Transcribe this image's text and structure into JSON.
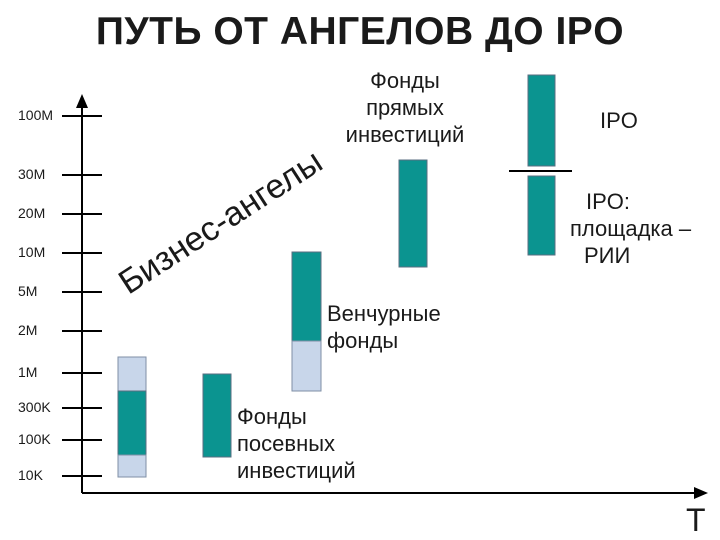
{
  "title": "ПУТЬ ОТ АНГЕЛОВ  ДО IPO",
  "axis": {
    "x_label": "T",
    "ticks": [
      "100M",
      "30M",
      "20M",
      "10M",
      "5M",
      "2M",
      "1M",
      "300K",
      "100K",
      "10K"
    ]
  },
  "stages": {
    "angels": "Бизнес-ангелы",
    "seed": [
      "Фонды",
      "посевных",
      "инвестиций"
    ],
    "venture": [
      "Венчурные",
      "фонды"
    ],
    "private_equity": [
      "Фонды",
      "прямых",
      "инвестиций"
    ],
    "ipo": "IPO",
    "ipo_platform": [
      "IPO:",
      "площадка –",
      "РИИ"
    ]
  },
  "colors": {
    "teal": "#0b9490",
    "light": "#c8d6ea",
    "outline": "#7f8fa6"
  }
}
